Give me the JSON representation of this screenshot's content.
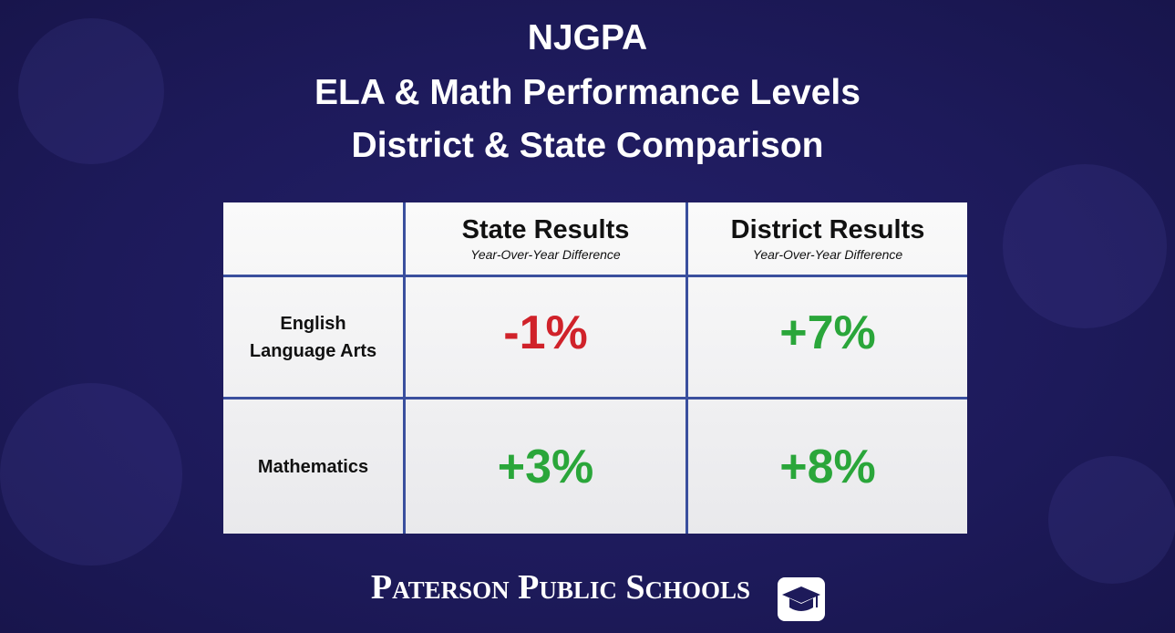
{
  "title": [
    "NJGPA",
    "ELA & Math Performance Levels",
    "District & State Comparison"
  ],
  "table": {
    "columns": [
      {
        "title": "State Results",
        "subtitle": "Year-Over-Year Difference"
      },
      {
        "title": "District Results",
        "subtitle": "Year-Over-Year Difference"
      }
    ],
    "rows": [
      {
        "label": [
          "English",
          "Language Arts"
        ],
        "values": [
          "-1%",
          "+7%"
        ]
      },
      {
        "label": [
          "Mathematics"
        ],
        "values": [
          "+3%",
          "+8%"
        ]
      }
    ]
  },
  "footer": "Paterson Public Schools"
}
